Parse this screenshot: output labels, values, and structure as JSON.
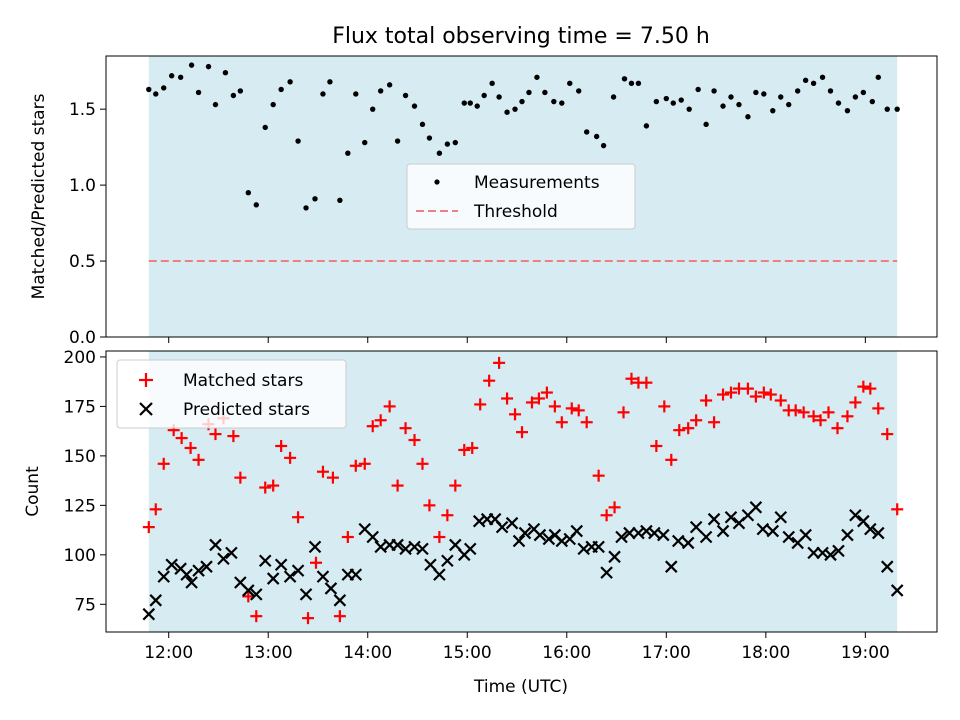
{
  "chart_data": [
    {
      "type": "scatter",
      "title": "Flux total observing time = 7.50 h",
      "ylabel": "Matched/Predicted stars",
      "xlim": [
        11.37,
        19.72
      ],
      "ylim": [
        0,
        1.85
      ],
      "yticks": [
        0.0,
        0.5,
        1.0,
        1.5
      ],
      "ytick_labels": [
        "0.0",
        "0.5",
        "1.0",
        "1.5"
      ],
      "shaded_span": [
        11.8,
        19.32
      ],
      "legend_position": "center",
      "threshold": {
        "name": "Threshold",
        "value": 0.5,
        "color": "#f08080"
      },
      "series": [
        {
          "name": "Measurements",
          "color": "#000000",
          "x": [
            11.8,
            11.87,
            11.95,
            12.03,
            12.12,
            12.23,
            12.3,
            12.4,
            12.47,
            12.57,
            12.65,
            12.72,
            12.8,
            12.88,
            12.97,
            13.05,
            13.13,
            13.22,
            13.3,
            13.38,
            13.47,
            13.55,
            13.62,
            13.72,
            13.8,
            13.88,
            13.97,
            14.05,
            14.13,
            14.22,
            14.3,
            14.38,
            14.47,
            14.55,
            14.62,
            14.72,
            14.8,
            14.88,
            14.97,
            15.03,
            15.1,
            15.17,
            15.25,
            15.32,
            15.4,
            15.48,
            15.55,
            15.62,
            15.7,
            15.78,
            15.87,
            15.95,
            16.03,
            16.12,
            16.2,
            16.3,
            16.37,
            16.47,
            16.58,
            16.65,
            16.72,
            16.8,
            16.9,
            17.0,
            17.07,
            17.15,
            17.23,
            17.32,
            17.4,
            17.48,
            17.57,
            17.65,
            17.73,
            17.82,
            17.9,
            17.98,
            18.07,
            18.15,
            18.23,
            18.32,
            18.4,
            18.48,
            18.57,
            18.65,
            18.73,
            18.82,
            18.9,
            18.98,
            19.07,
            19.13,
            19.22,
            19.32
          ],
          "y": [
            1.63,
            1.6,
            1.64,
            1.72,
            1.71,
            1.79,
            1.61,
            1.78,
            1.53,
            1.74,
            1.59,
            1.62,
            0.95,
            0.87,
            1.38,
            1.53,
            1.63,
            1.68,
            1.29,
            0.85,
            0.91,
            1.6,
            1.68,
            0.9,
            1.21,
            1.6,
            1.28,
            1.5,
            1.62,
            1.66,
            1.29,
            1.59,
            1.52,
            1.4,
            1.31,
            1.21,
            1.27,
            1.28,
            1.54,
            1.54,
            1.52,
            1.59,
            1.67,
            1.58,
            1.48,
            1.5,
            1.55,
            1.61,
            1.71,
            1.61,
            1.55,
            1.54,
            1.67,
            1.62,
            1.35,
            1.32,
            1.26,
            1.58,
            1.7,
            1.67,
            1.67,
            1.39,
            1.55,
            1.57,
            1.54,
            1.56,
            1.5,
            1.63,
            1.4,
            1.62,
            1.52,
            1.58,
            1.53,
            1.45,
            1.61,
            1.6,
            1.49,
            1.58,
            1.53,
            1.62,
            1.69,
            1.67,
            1.71,
            1.62,
            1.54,
            1.49,
            1.58,
            1.61,
            1.55,
            1.71,
            1.5,
            1.5
          ]
        }
      ]
    },
    {
      "type": "scatter",
      "xlabel": "Time (UTC)",
      "ylabel": "Count",
      "xlim": [
        11.37,
        19.72
      ],
      "ylim": [
        61,
        203
      ],
      "xticks": [
        12,
        13,
        14,
        15,
        16,
        17,
        18,
        19
      ],
      "xtick_labels": [
        "12:00",
        "13:00",
        "14:00",
        "15:00",
        "16:00",
        "17:00",
        "18:00",
        "19:00"
      ],
      "yticks": [
        75,
        100,
        125,
        150,
        175,
        200
      ],
      "ytick_labels": [
        "75",
        "100",
        "125",
        "150",
        "175",
        "200"
      ],
      "shaded_span": [
        11.8,
        19.32
      ],
      "legend_position": "upper-left",
      "series": [
        {
          "name": "Matched stars",
          "marker": "plus",
          "color": "#ff0000",
          "x": [
            11.8,
            11.87,
            11.95,
            12.05,
            12.13,
            12.22,
            12.3,
            12.4,
            12.47,
            12.55,
            12.65,
            12.72,
            12.8,
            12.88,
            12.97,
            13.05,
            13.13,
            13.22,
            13.3,
            13.4,
            13.48,
            13.55,
            13.65,
            13.72,
            13.8,
            13.88,
            13.97,
            14.05,
            14.13,
            14.22,
            14.3,
            14.38,
            14.47,
            14.55,
            14.62,
            14.72,
            14.8,
            14.88,
            14.97,
            15.05,
            15.13,
            15.22,
            15.32,
            15.4,
            15.48,
            15.55,
            15.65,
            15.72,
            15.8,
            15.88,
            15.95,
            16.05,
            16.12,
            16.2,
            16.32,
            16.4,
            16.48,
            16.57,
            16.65,
            16.72,
            16.8,
            16.9,
            16.98,
            17.05,
            17.13,
            17.22,
            17.3,
            17.4,
            17.48,
            17.57,
            17.65,
            17.73,
            17.82,
            17.9,
            17.98,
            18.05,
            18.15,
            18.23,
            18.3,
            18.38,
            18.48,
            18.55,
            18.63,
            18.72,
            18.82,
            18.9,
            18.98,
            19.05,
            19.13,
            19.22,
            19.32
          ],
          "y": [
            114,
            123,
            146,
            163,
            159,
            154,
            148,
            166,
            161,
            169,
            160,
            139,
            79,
            69,
            134,
            135,
            155,
            149,
            119,
            68,
            96,
            142,
            139,
            69,
            109,
            145,
            146,
            165,
            168,
            175,
            135,
            164,
            158,
            146,
            125,
            109,
            120,
            135,
            153,
            154,
            176,
            188,
            197,
            179,
            171,
            162,
            177,
            179,
            182,
            175,
            167,
            174,
            173,
            167,
            140,
            120,
            124,
            172,
            189,
            187,
            187,
            155,
            175,
            148,
            163,
            164,
            168,
            178,
            167,
            181,
            182,
            184,
            184,
            180,
            182,
            181,
            178,
            173,
            173,
            172,
            170,
            168,
            172,
            164,
            170,
            177,
            185,
            184,
            174,
            161,
            123
          ]
        },
        {
          "name": "Predicted stars",
          "marker": "x",
          "color": "#000000",
          "x": [
            11.8,
            11.87,
            11.95,
            12.03,
            12.12,
            12.18,
            12.23,
            12.3,
            12.38,
            12.47,
            12.55,
            12.63,
            12.72,
            12.8,
            12.88,
            12.97,
            13.05,
            13.13,
            13.22,
            13.3,
            13.38,
            13.47,
            13.55,
            13.63,
            13.72,
            13.8,
            13.88,
            13.97,
            14.05,
            14.13,
            14.22,
            14.3,
            14.38,
            14.47,
            14.55,
            14.63,
            14.72,
            14.8,
            14.88,
            14.97,
            15.03,
            15.12,
            15.2,
            15.28,
            15.35,
            15.45,
            15.52,
            15.58,
            15.67,
            15.73,
            15.82,
            15.88,
            15.95,
            16.03,
            16.1,
            16.17,
            16.25,
            16.32,
            16.4,
            16.48,
            16.55,
            16.63,
            16.72,
            16.8,
            16.88,
            16.97,
            17.05,
            17.12,
            17.22,
            17.3,
            17.4,
            17.48,
            17.57,
            17.65,
            17.73,
            17.82,
            17.9,
            17.97,
            18.07,
            18.15,
            18.23,
            18.32,
            18.4,
            18.48,
            18.57,
            18.65,
            18.73,
            18.82,
            18.9,
            18.98,
            19.05,
            19.13,
            19.22,
            19.32
          ],
          "y": [
            70,
            77,
            89,
            95,
            93,
            90,
            86,
            92,
            94,
            105,
            98,
            101,
            86,
            82,
            80,
            97,
            88,
            95,
            89,
            92,
            80,
            104,
            89,
            83,
            77,
            90,
            90,
            113,
            109,
            104,
            105,
            105,
            103,
            104,
            103,
            95,
            90,
            97,
            105,
            100,
            103,
            117,
            118,
            118,
            114,
            116,
            107,
            111,
            113,
            110,
            108,
            110,
            107,
            108,
            112,
            103,
            104,
            104,
            91,
            99,
            109,
            111,
            111,
            112,
            111,
            110,
            94,
            107,
            106,
            114,
            109,
            118,
            112,
            119,
            116,
            120,
            124,
            113,
            112,
            119,
            109,
            106,
            110,
            101,
            101,
            100,
            102,
            110,
            120,
            117,
            113,
            111,
            94,
            82
          ]
        }
      ]
    }
  ]
}
